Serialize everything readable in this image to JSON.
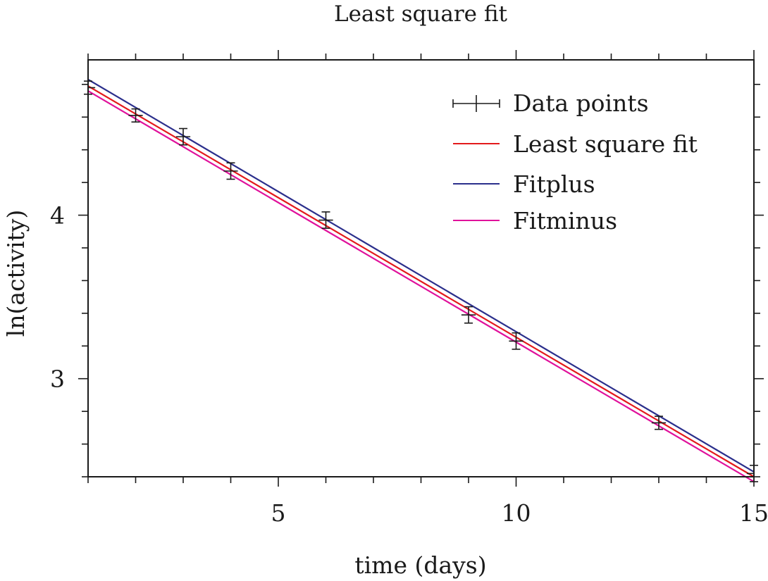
{
  "chart_data": {
    "type": "scatter",
    "title": "Least square fit",
    "xlabel": "time (days)",
    "ylabel": "ln(activity)",
    "xlim": [
      1,
      15
    ],
    "ylim": [
      2.4,
      4.95
    ],
    "x_ticks": [
      5,
      10,
      15
    ],
    "y_ticks": [
      3,
      4
    ],
    "x_minor_step": 1,
    "y_minor_step": 0.2,
    "grid": false,
    "legend_position": "top-right",
    "points": {
      "name": "Data points",
      "color": "#1a1a1a",
      "x": [
        1,
        2,
        3,
        4,
        6,
        9,
        10,
        13,
        15
      ],
      "y": [
        4.78,
        4.61,
        4.48,
        4.27,
        3.97,
        3.39,
        3.23,
        2.73,
        2.42
      ],
      "y_error": [
        0.04,
        0.04,
        0.05,
        0.05,
        0.05,
        0.05,
        0.05,
        0.04,
        0.05
      ],
      "x_error": [
        0.15,
        0.15,
        0.15,
        0.15,
        0.15,
        0.15,
        0.15,
        0.15,
        0.15
      ]
    },
    "series": [
      {
        "name": "Least square fit",
        "color": "#e31a1c",
        "x": [
          1,
          15
        ],
        "y": [
          4.79,
          2.4
        ]
      },
      {
        "name": "Fitplus",
        "color": "#2b2f8c",
        "x": [
          1,
          15
        ],
        "y": [
          4.83,
          2.43
        ]
      },
      {
        "name": "Fitminus",
        "color": "#e0119b",
        "x": [
          1,
          15
        ],
        "y": [
          4.76,
          2.37
        ]
      }
    ]
  }
}
